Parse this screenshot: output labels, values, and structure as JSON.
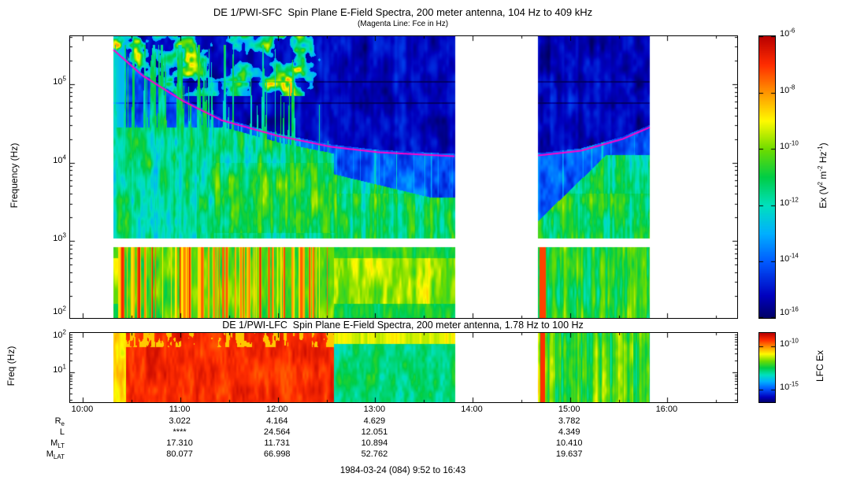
{
  "figure": {
    "caption": "1984-03-24 (084) 9:52 to 16:43"
  },
  "time_axis": {
    "start_hour": 9.867,
    "end_hour": 16.717,
    "tick_hours": [
      10,
      11,
      12,
      13,
      14,
      15,
      16
    ],
    "tick_labels": [
      "10:00",
      "11:00",
      "12:00",
      "13:00",
      "14:00",
      "15:00",
      "16:00"
    ]
  },
  "ephemeris": {
    "column_hours": [
      11,
      12,
      13,
      15
    ],
    "rows": [
      {
        "label": "R",
        "sub": "e",
        "values": [
          "3.022",
          "4.164",
          "4.629",
          "3.782"
        ]
      },
      {
        "label": "L",
        "sub": "",
        "values": [
          "****",
          "24.564",
          "12.051",
          "4.349"
        ]
      },
      {
        "label": "M",
        "sub": "LT",
        "values": [
          "17.310",
          "11.731",
          "10.894",
          "10.410"
        ]
      },
      {
        "label": "M",
        "sub": "LAT",
        "values": [
          "80.077",
          "66.998",
          "52.762",
          "19.637"
        ]
      }
    ]
  },
  "chart_data": [
    {
      "type": "heatmap",
      "instrument": "DE 1/PWI-SFC",
      "title": "DE 1/PWI-SFC  Spin Plane E-Field Spectra, 200 meter antenna, 104 Hz to 409 kHz",
      "subtitle": "(Magenta Line: Fce in Hz)",
      "ylabel": "Frequency (Hz)",
      "ytick_exponents": [
        5,
        4,
        3,
        2
      ],
      "ylim_hz": [
        104,
        409000
      ],
      "data_start_hour": 10.31,
      "data_end_hour": 15.82,
      "gap_hours": [
        13.82,
        14.67
      ],
      "white_band_log10hz": [
        2.92,
        3.03
      ],
      "regime_change_hour": 12.58,
      "colorbar": {
        "label_text": "Ex (V2 m-2 Hz-1)",
        "label_parts": [
          {
            "text": "Ex (V"
          },
          {
            "sup": "2"
          },
          {
            "text": " m"
          },
          {
            "sup": "-2"
          },
          {
            "text": " Hz"
          },
          {
            "sup": "-1"
          },
          {
            "text": ")"
          }
        ],
        "tick_exponents": [
          -6,
          -8,
          -10,
          -12,
          -14,
          -16
        ],
        "range_log10": [
          -6,
          -16
        ]
      },
      "fce_line": {
        "color": "#ff00cc",
        "points_hour_log10hz": [
          [
            10.31,
            5.44
          ],
          [
            10.61,
            5.11
          ],
          [
            11.02,
            4.79
          ],
          [
            11.42,
            4.54
          ],
          [
            12.0,
            4.34
          ],
          [
            12.55,
            4.2
          ],
          [
            13.04,
            4.13
          ],
          [
            13.82,
            4.08
          ],
          [
            14.67,
            4.09
          ],
          [
            15.11,
            4.15
          ],
          [
            15.54,
            4.3
          ],
          [
            15.82,
            4.45
          ]
        ]
      }
    },
    {
      "type": "heatmap",
      "instrument": "DE 1/PWI-LFC",
      "title": "DE 1/PWI-LFC  Spin Plane E-Field Spectra, 200 meter antenna, 1.78 Hz to 100 Hz",
      "ylabel": "Freq (Hz)",
      "ytick_exponents": [
        2,
        1
      ],
      "ylim_hz": [
        1.78,
        100
      ],
      "data_start_hour": 10.31,
      "data_end_hour": 15.82,
      "gap_hours": [
        13.82,
        14.67
      ],
      "regime_change_hour": 12.58,
      "colorbar": {
        "label": "LFC Ex",
        "tick_exponents": [
          -10,
          -15
        ],
        "range_log10": [
          -8.5,
          -16.5
        ]
      }
    }
  ]
}
